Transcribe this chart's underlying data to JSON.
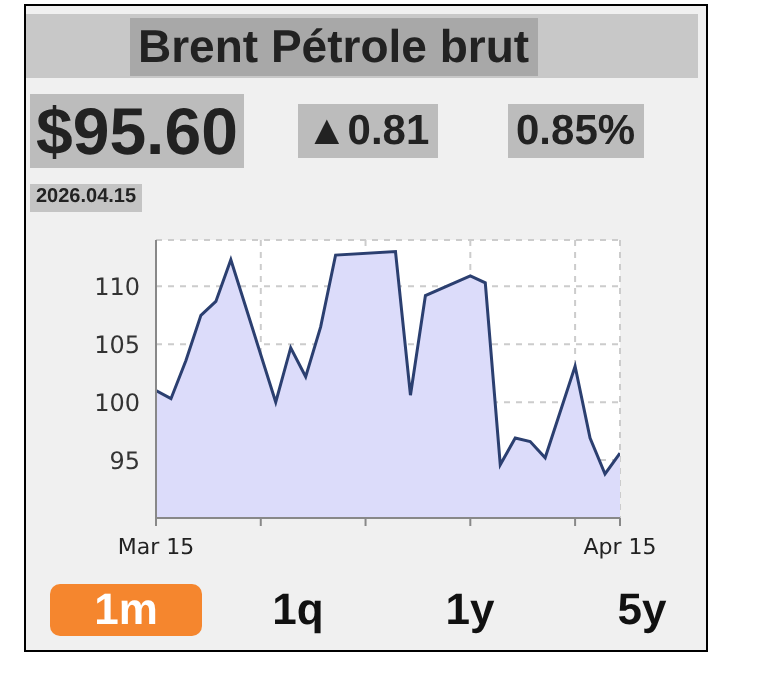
{
  "chart_data": {
    "type": "area",
    "title": "Brent Pétrole brut",
    "annotations": [
      "$95.60",
      "▲0.81",
      "0.85%",
      "2026.04.15",
      "1m",
      "1q",
      "1y",
      "5y"
    ],
    "x": [
      "2026-03-15",
      "2026-03-16",
      "2026-03-17",
      "2026-03-18",
      "2026-03-19",
      "2026-03-20",
      "2026-03-23",
      "2026-03-24",
      "2026-03-25",
      "2026-03-26",
      "2026-03-27",
      "2026-03-31",
      "2026-04-01",
      "2026-04-02",
      "2026-04-05",
      "2026-04-06",
      "2026-04-07",
      "2026-04-08",
      "2026-04-09",
      "2026-04-10",
      "2026-04-12",
      "2026-04-13",
      "2026-04-14",
      "2026-04-15"
    ],
    "series": [
      {
        "color": "#2b3f70",
        "values": [
          101.0,
          100.3,
          103.6,
          107.5,
          108.7,
          112.3,
          100.0,
          104.7,
          102.2,
          106.5,
          112.7,
          113.0,
          100.6,
          109.2,
          110.9,
          110.3,
          94.6,
          96.9,
          96.6,
          95.2,
          103.1,
          96.9,
          93.8,
          95.6
        ]
      }
    ],
    "xlim": [
      "2026-03-15",
      "2026-04-15"
    ],
    "xticks": [
      {
        "value": "2026-03-15",
        "label": "Mar 15"
      },
      {
        "value": "2026-03-22",
        "label": null
      },
      {
        "value": "2026-03-29",
        "label": null
      },
      {
        "value": "2026-04-05",
        "label": null
      },
      {
        "value": "2026-04-12",
        "label": null
      },
      {
        "value": "2026-04-15",
        "label": "Apr 15"
      }
    ],
    "ylim": [
      90,
      114
    ],
    "yticks": [
      95,
      100,
      105,
      110
    ],
    "grid": true,
    "legend": false,
    "marker": "none",
    "line_style": "solid"
  }
}
